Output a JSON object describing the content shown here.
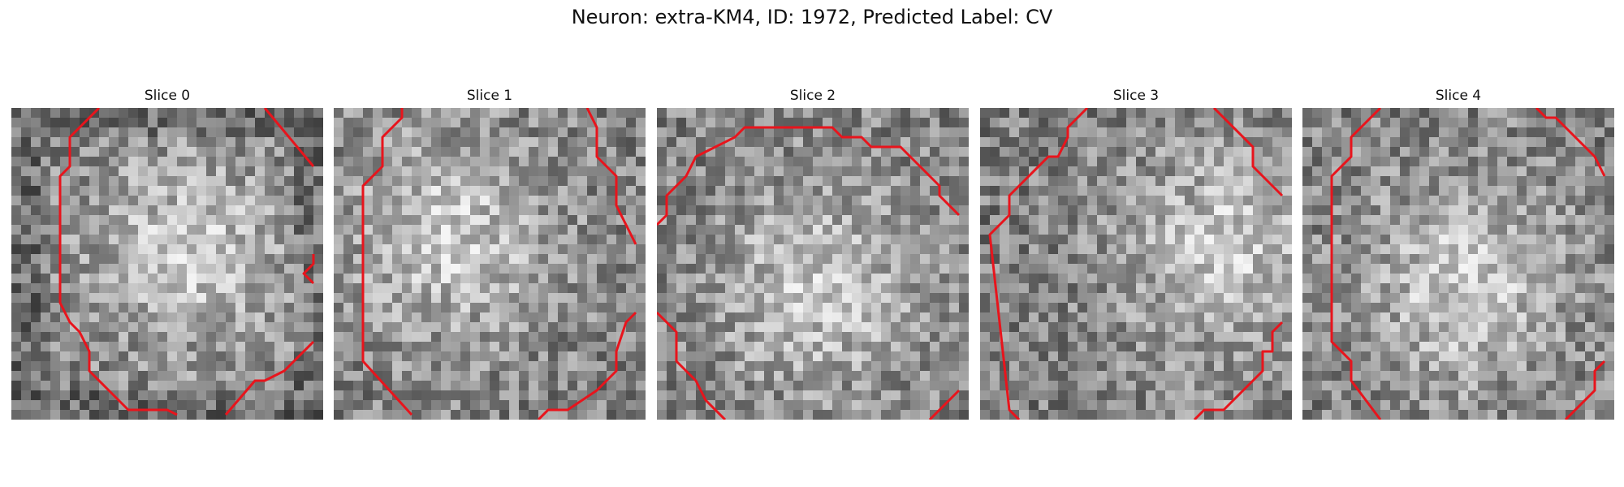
{
  "title": "Neuron: extra-KM4, ID: 1972, Predicted Label: CV",
  "figure": {
    "grid_size": 32,
    "contour_color": "#e8141c",
    "colormap": "grayscale"
  },
  "slices": [
    {
      "label": "Slice 0",
      "seed": 17,
      "bright_spot": [
        0.55,
        0.45
      ],
      "dark_corners": true,
      "contours": [
        [
          [
            9,
            0
          ],
          [
            6,
            3
          ],
          [
            6,
            6
          ],
          [
            5,
            7
          ],
          [
            5,
            20
          ],
          [
            6,
            22
          ],
          [
            7,
            23
          ],
          [
            8,
            25
          ],
          [
            8,
            27
          ],
          [
            10,
            29
          ],
          [
            12,
            31
          ],
          [
            16,
            31
          ],
          [
            17,
            31.5
          ]
        ],
        [
          [
            26,
            0
          ],
          [
            31,
            6
          ]
        ],
        [
          [
            31,
            15
          ],
          [
            31,
            16
          ],
          [
            30,
            17
          ],
          [
            31,
            18
          ]
        ],
        [
          [
            31,
            24
          ],
          [
            28,
            27
          ],
          [
            26,
            28
          ],
          [
            25,
            28
          ],
          [
            22,
            31.5
          ]
        ]
      ]
    },
    {
      "label": "Slice 1",
      "seed": 41,
      "bright_spot": [
        0.35,
        0.4
      ],
      "dark_corners": false,
      "contours": [
        [
          [
            7,
            0
          ],
          [
            7,
            1
          ],
          [
            5,
            3
          ],
          [
            5,
            6
          ],
          [
            3,
            8
          ],
          [
            3,
            26
          ],
          [
            8,
            31.5
          ]
        ],
        [
          [
            26,
            0
          ],
          [
            27,
            2
          ],
          [
            27,
            5
          ],
          [
            29,
            7
          ],
          [
            29,
            10
          ],
          [
            30,
            12
          ],
          [
            31,
            14
          ]
        ],
        [
          [
            31,
            21
          ],
          [
            30,
            22
          ],
          [
            29,
            25
          ],
          [
            29,
            27
          ],
          [
            27,
            29
          ],
          [
            24,
            31
          ],
          [
            22,
            31
          ],
          [
            21,
            32
          ]
        ]
      ]
    },
    {
      "label": "Slice 2",
      "seed": 63,
      "bright_spot": [
        0.5,
        0.55
      ],
      "dark_corners": false,
      "contours": [
        [
          [
            0,
            12
          ],
          [
            1,
            11
          ],
          [
            1,
            9
          ],
          [
            3,
            7
          ],
          [
            4,
            5
          ],
          [
            6,
            4
          ],
          [
            8,
            3
          ],
          [
            9,
            2
          ],
          [
            18,
            2
          ],
          [
            19,
            3
          ],
          [
            21,
            3
          ],
          [
            22,
            4
          ],
          [
            25,
            4
          ],
          [
            26,
            5
          ],
          [
            27,
            6
          ],
          [
            28,
            7
          ],
          [
            29,
            8
          ],
          [
            29,
            9
          ],
          [
            31,
            11
          ]
        ],
        [
          [
            0,
            21
          ],
          [
            2,
            23
          ],
          [
            2,
            26
          ],
          [
            4,
            28
          ],
          [
            5,
            30
          ],
          [
            7,
            32
          ]
        ],
        [
          [
            28,
            32
          ],
          [
            31,
            29
          ]
        ]
      ]
    },
    {
      "label": "Slice 3",
      "seed": 88,
      "bright_spot": [
        0.78,
        0.45
      ],
      "dark_corners": false,
      "contours": [
        [
          [
            11,
            0
          ],
          [
            9,
            2
          ],
          [
            9,
            3
          ],
          [
            8,
            5
          ],
          [
            7,
            5
          ],
          [
            5,
            7
          ],
          [
            4,
            8
          ],
          [
            3,
            9
          ],
          [
            3,
            11
          ],
          [
            1,
            13
          ],
          [
            3,
            31
          ],
          [
            4,
            32
          ]
        ],
        [
          [
            24,
            0
          ],
          [
            28,
            4
          ],
          [
            28,
            6
          ],
          [
            31,
            9
          ]
        ],
        [
          [
            31,
            22
          ],
          [
            30,
            23
          ],
          [
            30,
            25
          ],
          [
            29,
            25
          ],
          [
            29,
            27
          ],
          [
            27,
            29
          ],
          [
            26,
            30
          ],
          [
            25,
            31
          ],
          [
            24,
            31
          ],
          [
            23,
            31
          ],
          [
            22,
            32
          ]
        ]
      ]
    },
    {
      "label": "Slice 4",
      "seed": 112,
      "bright_spot": [
        0.5,
        0.55
      ],
      "dark_corners": false,
      "contours": [
        [
          [
            8,
            0
          ],
          [
            5,
            3
          ],
          [
            5,
            5
          ],
          [
            3,
            7
          ],
          [
            3,
            24
          ],
          [
            5,
            26
          ],
          [
            5,
            28
          ],
          [
            8,
            32
          ]
        ],
        [
          [
            24,
            0
          ],
          [
            25,
            1
          ],
          [
            26,
            1
          ],
          [
            27,
            2
          ],
          [
            28,
            3
          ],
          [
            29,
            4
          ],
          [
            30,
            5
          ],
          [
            31,
            7
          ]
        ],
        [
          [
            27,
            32
          ],
          [
            30,
            29
          ],
          [
            30,
            27
          ],
          [
            31,
            26
          ]
        ]
      ]
    }
  ]
}
